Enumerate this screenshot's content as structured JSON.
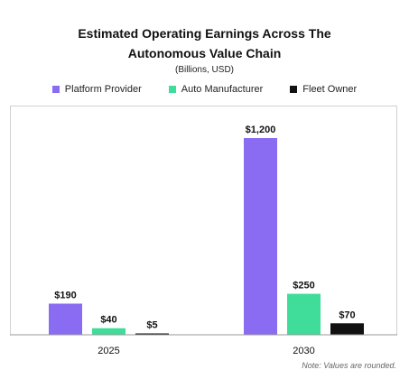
{
  "chart_data": {
    "type": "bar",
    "title_lines": [
      "Estimated Operating Earnings Across The",
      "Autonomous Value Chain"
    ],
    "subtitle": "(Billions, USD)",
    "categories": [
      "2025",
      "2030"
    ],
    "series": [
      {
        "name": "Platform Provider",
        "color": "#8a6cf2",
        "values": [
          190,
          1200
        ],
        "labels": [
          "$190",
          "$1,200"
        ]
      },
      {
        "name": "Auto Manufacturer",
        "color": "#3fdc9a",
        "values": [
          40,
          250
        ],
        "labels": [
          "$40",
          "$250"
        ]
      },
      {
        "name": "Fleet Owner",
        "color": "#111111",
        "values": [
          5,
          70
        ],
        "labels": [
          "$5",
          "$70"
        ]
      }
    ],
    "ylim": [
      0,
      1300
    ],
    "grid": false,
    "legend_position": "top-center",
    "note": "Note: Values are rounded."
  }
}
